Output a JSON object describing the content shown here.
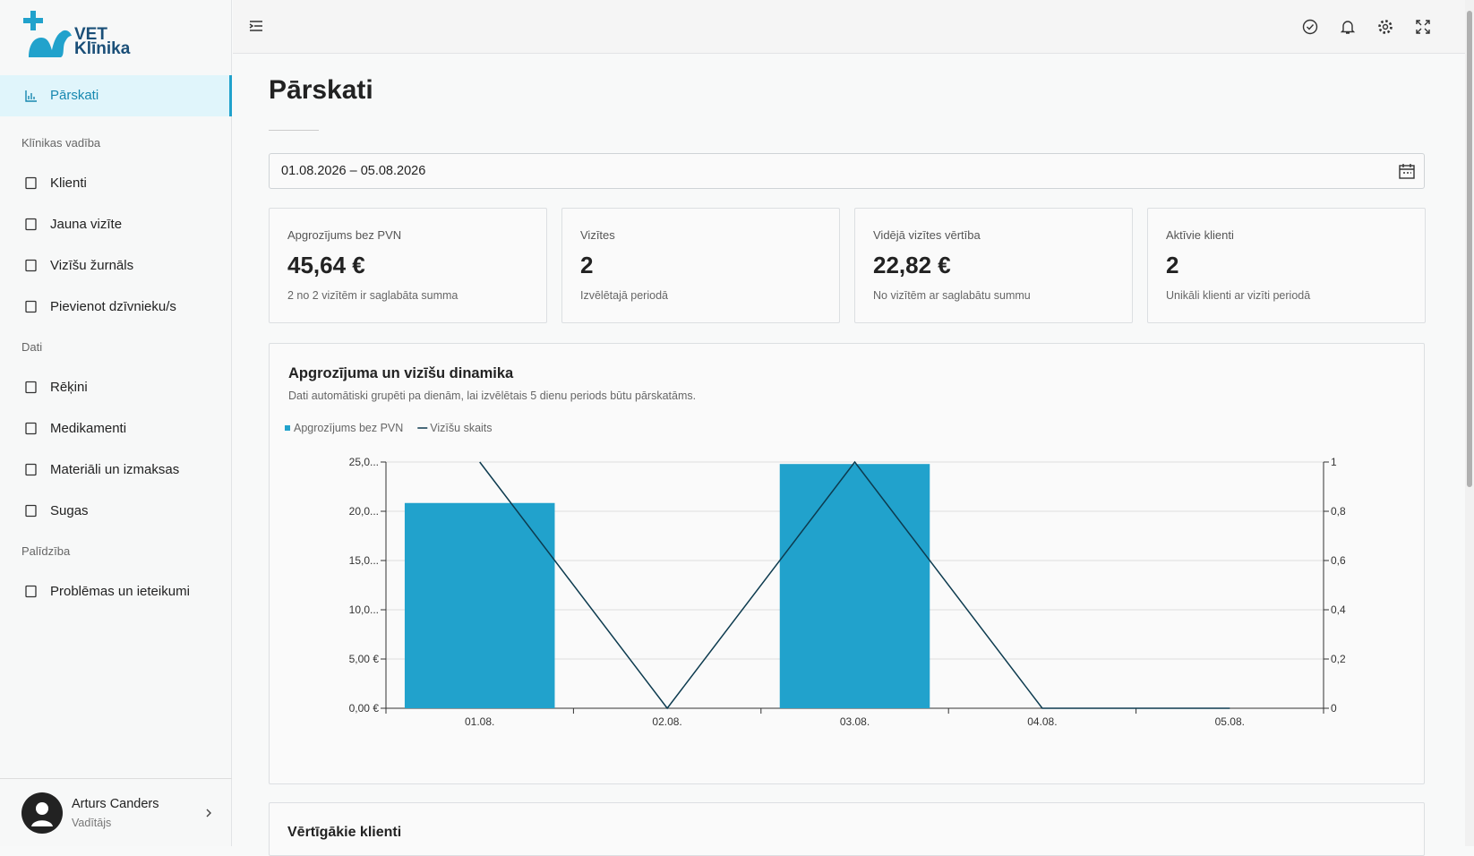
{
  "sidebar": {
    "brand": [
      "VET",
      "Klīnika"
    ],
    "active": "Pārskati",
    "sections": [
      {
        "title": "Klīnikas vadība",
        "items": [
          "Klienti",
          "Jauna vizīte",
          "Vizīšu žurnāls",
          "Pievienot dzīvnieku/s"
        ]
      },
      {
        "title": "Dati",
        "items": [
          "Rēķini",
          "Medikamenti",
          "Materiāli un izmaksas",
          "Sugas"
        ]
      },
      {
        "title": "Palīdzība",
        "items": [
          "Problēmas un ieteikumi"
        ]
      }
    ],
    "user": {
      "name": "Arturs Canders",
      "role": "Vadītājs"
    }
  },
  "page": {
    "title": "Pārskati",
    "date_range": "01.08.2026 – 05.08.2026"
  },
  "kpis": [
    {
      "label": "Apgrozījums bez PVN",
      "value": "45,64 €",
      "note": "2 no 2 vizītēm ir saglabāta summa"
    },
    {
      "label": "Vizītes",
      "value": "2",
      "note": "Izvēlētajā periodā"
    },
    {
      "label": "Vidējā vizītes vērtība",
      "value": "22,82 €",
      "note": "No vizītēm ar saglabātu summu"
    },
    {
      "label": "Aktīvie klienti",
      "value": "2",
      "note": "Unikāli klienti ar vizīti periodā"
    }
  ],
  "chart_data": {
    "type": "bar",
    "title": "Apgrozījuma un vizīšu dinamika",
    "subtitle": "Dati automātiski grupēti pa dienām, lai izvēlētais 5 dienu periods būtu pārskatāms.",
    "categories": [
      "01.08.",
      "02.08.",
      "03.08.",
      "04.08.",
      "05.08."
    ],
    "series": [
      {
        "name": "Apgrozījums bez PVN",
        "color": "#21a2cc",
        "values": [
          20.84,
          0,
          24.8,
          0,
          0
        ]
      },
      {
        "name": "Vizīšu skaits",
        "color": "#0d3b4f",
        "values": [
          1,
          0,
          1,
          0,
          0
        ],
        "axis": "y2",
        "type": "line"
      }
    ],
    "ylim": [
      0,
      25
    ],
    "yticks": [
      {
        "value": 0,
        "label": "0,00 €"
      },
      {
        "value": 5,
        "label": "5,00 €"
      },
      {
        "value": 10,
        "label": "10,0..."
      },
      {
        "value": 15,
        "label": "15,0..."
      },
      {
        "value": 20,
        "label": "20,0..."
      },
      {
        "value": 25,
        "label": "25,0..."
      }
    ],
    "y2lim": [
      0,
      1
    ],
    "y2ticks": [
      0,
      {
        "value": 0.2,
        "label": "0,2"
      },
      {
        "value": 0.4,
        "label": "0,4"
      },
      {
        "value": 0.6,
        "label": "0,6"
      },
      {
        "value": 0.8,
        "label": "0,8"
      },
      1
    ],
    "grid": true
  },
  "next_section": "Vērtīgākie klienti"
}
